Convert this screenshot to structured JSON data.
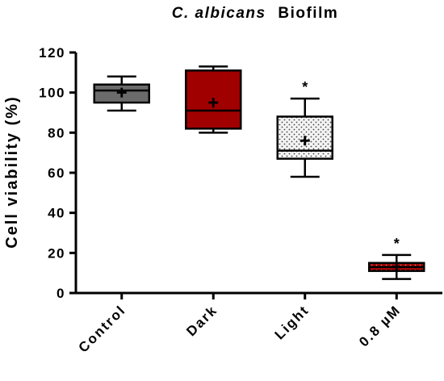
{
  "chart_data": {
    "type": "box",
    "title_italic": "C. albicans",
    "title_rest": "Biofilm",
    "ylabel": "Cell viability (%)",
    "xlabel": "",
    "ylim": [
      0,
      120
    ],
    "yticks": [
      0,
      20,
      40,
      60,
      80,
      100,
      120
    ],
    "categories": [
      "Control",
      "Dark",
      "Light",
      "0.8 µM"
    ],
    "boxes": [
      {
        "category": "Control",
        "min": 91,
        "q1": 95,
        "median": 101,
        "q3": 104,
        "max": 108,
        "mean": 100,
        "fill": "#6b6b6b",
        "pattern": "solid",
        "annotation": ""
      },
      {
        "category": "Dark",
        "min": 80,
        "q1": 82,
        "median": 91,
        "q3": 111,
        "max": 113,
        "mean": 95,
        "fill": "#a00000",
        "pattern": "solid",
        "annotation": ""
      },
      {
        "category": "Light",
        "min": 58,
        "q1": 67,
        "median": 71,
        "q3": 88,
        "max": 97,
        "mean": 76,
        "fill": "#f2f2f2",
        "pattern": "dots",
        "annotation": "*"
      },
      {
        "category": "0.8 µM",
        "min": 7,
        "q1": 11,
        "median": 13,
        "q3": 15,
        "max": 19,
        "mean": 13,
        "fill": "#a00000",
        "pattern": "dots",
        "annotation": "*"
      }
    ],
    "grid": false,
    "legend": "none"
  }
}
